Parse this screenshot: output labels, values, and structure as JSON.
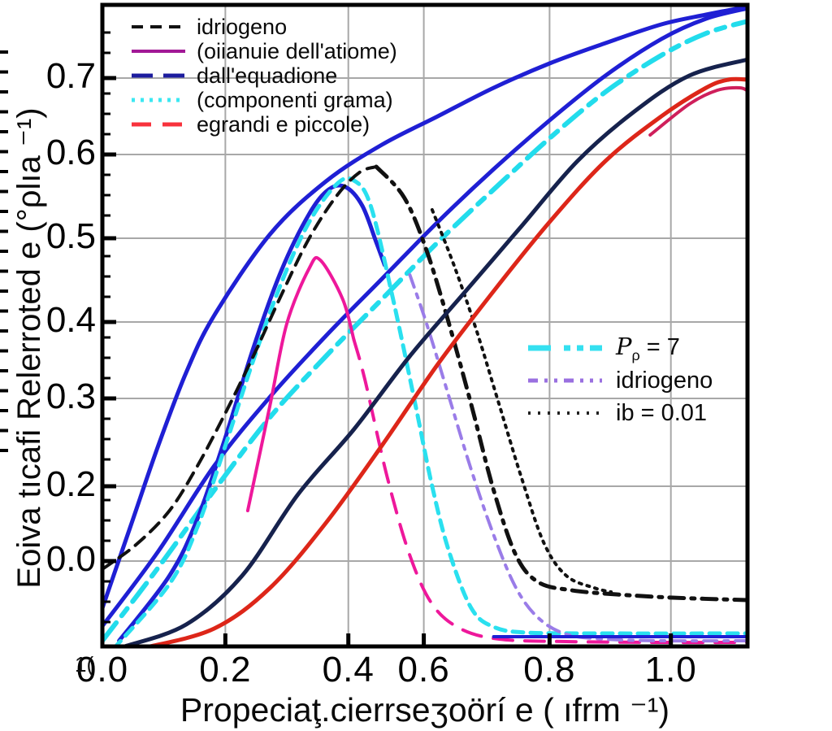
{
  "chart_data": {
    "type": "line",
    "title": "",
    "xlabel": "Propeciaţ.cierrseʒoörí e ( ıfrm ⁻¹)",
    "ylabel": "Eoiva tıcafi Relerroted e (°ρlıa ⁻¹)",
    "stray_mark": "1(",
    "xlim": [
      0,
      1.155
    ],
    "ylim": [
      0,
      0.79
    ],
    "grid": true,
    "grid_color": "#a8a8a8",
    "frame_color": "#000000",
    "x_ticks": [
      {
        "label": "0.0",
        "pos": 0.0
      },
      {
        "label": "0.2",
        "pos": 0.22
      },
      {
        "label": "0.4",
        "pos": 0.44
      },
      {
        "label": "0.6",
        "pos": 0.575
      },
      {
        "label": "0.8",
        "pos": 0.8
      },
      {
        "label": "1.0",
        "pos": 1.017
      }
    ],
    "y_ticks": [
      {
        "label": "0.7",
        "pos": 0.702
      },
      {
        "label": "0.6",
        "pos": 0.608
      },
      {
        "label": "0.5",
        "pos": 0.505
      },
      {
        "label": "0.4",
        "pos": 0.402
      },
      {
        "label": "0.3",
        "pos": 0.308
      },
      {
        "label": "0.2",
        "pos": 0.2
      },
      {
        "label": "0.0",
        "pos": 0.108
      }
    ],
    "legend_top_left": [
      {
        "label": "idriogeno",
        "color": "#111111",
        "width": 4,
        "dash": "14 9"
      },
      {
        "label": "(oiianuie dell'atiome)",
        "color": "#a21896",
        "width": 4,
        "dash": null
      },
      {
        "label": "dall'equadione",
        "color": "#1c1c9e",
        "width": 5,
        "dash": "26 13"
      },
      {
        "label": "(componenti grama)",
        "color": "#3ce8f2",
        "width": 5,
        "dash": "4 7"
      },
      {
        "label": "egrandi e piccole)",
        "color": "#f8323c",
        "width": 5,
        "dash": "24 14"
      }
    ],
    "legend_right": [
      {
        "label_base": "P",
        "label_sub": "ρ",
        "label_rest": " = 7",
        "color": "#35e0f0",
        "width": 7,
        "dash": "28 16 8 8 8 8"
      },
      {
        "label": "idriogeno",
        "color": "#9a70e0",
        "width": 5,
        "dash": "12 8 4 8 4 8"
      },
      {
        "label": "ib = 0.01",
        "color": "#222222",
        "width": 4,
        "dash": "3 9"
      }
    ],
    "series": [
      {
        "name": "blue-s-upper",
        "color": "#1f1fd4",
        "width": 5,
        "dash": null,
        "points": [
          [
            0,
            0.05
          ],
          [
            0.05,
            0.15
          ],
          [
            0.1,
            0.25
          ],
          [
            0.15,
            0.34
          ],
          [
            0.2,
            0.41
          ],
          [
            0.3,
            0.51
          ],
          [
            0.4,
            0.575
          ],
          [
            0.5,
            0.62
          ],
          [
            0.6,
            0.655
          ],
          [
            0.7,
            0.69
          ],
          [
            0.8,
            0.72
          ],
          [
            0.9,
            0.745
          ],
          [
            1.0,
            0.768
          ],
          [
            1.08,
            0.78
          ],
          [
            1.155,
            0.79
          ]
        ]
      },
      {
        "name": "blue-s-lower",
        "color": "#1f1fd4",
        "width": 5,
        "dash": null,
        "points": [
          [
            0,
            0.028
          ],
          [
            0.1,
            0.12
          ],
          [
            0.2,
            0.225
          ],
          [
            0.3,
            0.31
          ],
          [
            0.4,
            0.385
          ],
          [
            0.5,
            0.455
          ],
          [
            0.6,
            0.525
          ],
          [
            0.7,
            0.59
          ],
          [
            0.8,
            0.65
          ],
          [
            0.9,
            0.705
          ],
          [
            1.0,
            0.75
          ],
          [
            1.08,
            0.775
          ],
          [
            1.155,
            0.788
          ]
        ]
      },
      {
        "name": "cyan-dashdot-diagonal",
        "color": "#22dcec",
        "width": 6,
        "dash": "28 11 11 11",
        "points": [
          [
            0,
            0.01
          ],
          [
            0.1,
            0.1
          ],
          [
            0.2,
            0.195
          ],
          [
            0.3,
            0.285
          ],
          [
            0.4,
            0.36
          ],
          [
            0.5,
            0.43
          ],
          [
            0.6,
            0.5
          ],
          [
            0.7,
            0.565
          ],
          [
            0.8,
            0.628
          ],
          [
            0.9,
            0.685
          ],
          [
            1.0,
            0.73
          ],
          [
            1.08,
            0.757
          ],
          [
            1.155,
            0.772
          ]
        ]
      },
      {
        "name": "blue-bump",
        "color": "#1f1fd4",
        "width": 5,
        "dash": null,
        "points": [
          [
            0.03,
            0.01
          ],
          [
            0.12,
            0.09
          ],
          [
            0.17,
            0.16
          ],
          [
            0.22,
            0.26
          ],
          [
            0.27,
            0.37
          ],
          [
            0.32,
            0.465
          ],
          [
            0.37,
            0.535
          ],
          [
            0.405,
            0.565
          ],
          [
            0.435,
            0.568
          ],
          [
            0.465,
            0.545
          ],
          [
            0.49,
            0.5
          ],
          [
            0.505,
            0.472
          ]
        ]
      },
      {
        "name": "cyan-dashed-bell",
        "color": "#2ae0ef",
        "width": 5,
        "dash": "13 9",
        "points": [
          [
            0.02,
            0.0
          ],
          [
            0.12,
            0.08
          ],
          [
            0.17,
            0.15
          ],
          [
            0.22,
            0.25
          ],
          [
            0.27,
            0.355
          ],
          [
            0.32,
            0.45
          ],
          [
            0.37,
            0.525
          ],
          [
            0.42,
            0.572
          ],
          [
            0.45,
            0.576
          ],
          [
            0.48,
            0.545
          ],
          [
            0.52,
            0.43
          ],
          [
            0.56,
            0.3
          ],
          [
            0.59,
            0.2
          ],
          [
            0.62,
            0.12
          ],
          [
            0.66,
            0.05
          ],
          [
            0.7,
            0.027
          ],
          [
            0.76,
            0.02
          ],
          [
            0.9,
            0.019
          ],
          [
            1.155,
            0.019
          ]
        ]
      },
      {
        "name": "magenta-bell-rise",
        "color": "#ee189b",
        "width": 4,
        "dash": null,
        "points": [
          [
            0.26,
            0.17
          ],
          [
            0.3,
            0.3
          ],
          [
            0.33,
            0.4
          ],
          [
            0.37,
            0.468
          ],
          [
            0.39,
            0.478
          ],
          [
            0.43,
            0.43
          ],
          [
            0.45,
            0.38
          ]
        ]
      },
      {
        "name": "magenta-bell-fall",
        "color": "#ee189b",
        "width": 4,
        "dash": "24 15",
        "points": [
          [
            0.45,
            0.38
          ],
          [
            0.47,
            0.33
          ],
          [
            0.51,
            0.21
          ],
          [
            0.55,
            0.115
          ],
          [
            0.59,
            0.055
          ],
          [
            0.64,
            0.025
          ],
          [
            0.71,
            0.012
          ],
          [
            0.83,
            0.009
          ],
          [
            1.0,
            0.008
          ],
          [
            1.155,
            0.008
          ]
        ]
      },
      {
        "name": "black-dashed-rise",
        "color": "#111111",
        "width": 4,
        "dash": "15 10",
        "points": [
          [
            0,
            0.098
          ],
          [
            0.06,
            0.128
          ],
          [
            0.12,
            0.17
          ],
          [
            0.17,
            0.225
          ],
          [
            0.22,
            0.29
          ],
          [
            0.27,
            0.36
          ],
          [
            0.32,
            0.435
          ],
          [
            0.37,
            0.505
          ],
          [
            0.42,
            0.558
          ],
          [
            0.46,
            0.586
          ],
          [
            0.49,
            0.593
          ]
        ]
      },
      {
        "name": "black-dashdot-fall",
        "color": "#111111",
        "width": 5,
        "dash": "18 9 4 9",
        "points": [
          [
            0.49,
            0.593
          ],
          [
            0.54,
            0.555
          ],
          [
            0.58,
            0.49
          ],
          [
            0.62,
            0.4
          ],
          [
            0.66,
            0.3
          ],
          [
            0.7,
            0.195
          ],
          [
            0.74,
            0.115
          ],
          [
            0.78,
            0.082
          ],
          [
            0.84,
            0.072
          ],
          [
            0.92,
            0.067
          ],
          [
            1.02,
            0.063
          ],
          [
            1.155,
            0.06
          ]
        ]
      },
      {
        "name": "black-finedot-fall",
        "color": "#111111",
        "width": 4,
        "dash": "3 7",
        "points": [
          [
            0.59,
            0.54
          ],
          [
            0.63,
            0.47
          ],
          [
            0.67,
            0.39
          ],
          [
            0.71,
            0.3
          ],
          [
            0.75,
            0.21
          ],
          [
            0.79,
            0.13
          ],
          [
            0.83,
            0.09
          ],
          [
            0.88,
            0.075
          ],
          [
            0.91,
            0.07
          ]
        ]
      },
      {
        "name": "purple-dashdot-fall",
        "color": "#9a7ce8",
        "width": 4,
        "dash": "16 9 5 9",
        "points": [
          [
            0.55,
            0.46
          ],
          [
            0.58,
            0.4
          ],
          [
            0.62,
            0.31
          ],
          [
            0.66,
            0.22
          ],
          [
            0.7,
            0.14
          ],
          [
            0.74,
            0.075
          ],
          [
            0.78,
            0.038
          ],
          [
            0.83,
            0.018
          ],
          [
            0.9,
            0.012
          ],
          [
            1.0,
            0.01
          ],
          [
            1.155,
            0.01
          ]
        ]
      },
      {
        "name": "navy-s",
        "color": "#16224d",
        "width": 5,
        "dash": null,
        "points": [
          [
            0.04,
            0.003
          ],
          [
            0.15,
            0.03
          ],
          [
            0.25,
            0.09
          ],
          [
            0.35,
            0.19
          ],
          [
            0.45,
            0.27
          ],
          [
            0.55,
            0.36
          ],
          [
            0.65,
            0.44
          ],
          [
            0.75,
            0.52
          ],
          [
            0.85,
            0.6
          ],
          [
            0.95,
            0.66
          ],
          [
            1.05,
            0.705
          ],
          [
            1.155,
            0.725
          ]
        ]
      },
      {
        "name": "red-s",
        "color": "#dd2619",
        "width": 5,
        "dash": null,
        "points": [
          [
            0.08,
            0.002
          ],
          [
            0.2,
            0.025
          ],
          [
            0.3,
            0.075
          ],
          [
            0.4,
            0.155
          ],
          [
            0.5,
            0.25
          ],
          [
            0.6,
            0.35
          ],
          [
            0.7,
            0.44
          ],
          [
            0.8,
            0.525
          ],
          [
            0.9,
            0.6
          ],
          [
            1.0,
            0.655
          ],
          [
            1.08,
            0.69
          ],
          [
            1.12,
            0.7
          ],
          [
            1.155,
            0.7
          ]
        ]
      },
      {
        "name": "crimson-fork",
        "color": "#cf1f5b",
        "width": 4,
        "dash": null,
        "points": [
          [
            0.98,
            0.632
          ],
          [
            1.05,
            0.67
          ],
          [
            1.1,
            0.687
          ],
          [
            1.14,
            0.69
          ],
          [
            1.155,
            0.686
          ]
        ]
      },
      {
        "name": "blue-flat-bottom",
        "color": "#1f1fd4",
        "width": 4,
        "dash": null,
        "points": [
          [
            0.7,
            0.015
          ],
          [
            0.95,
            0.015
          ],
          [
            1.155,
            0.015
          ]
        ]
      }
    ]
  }
}
